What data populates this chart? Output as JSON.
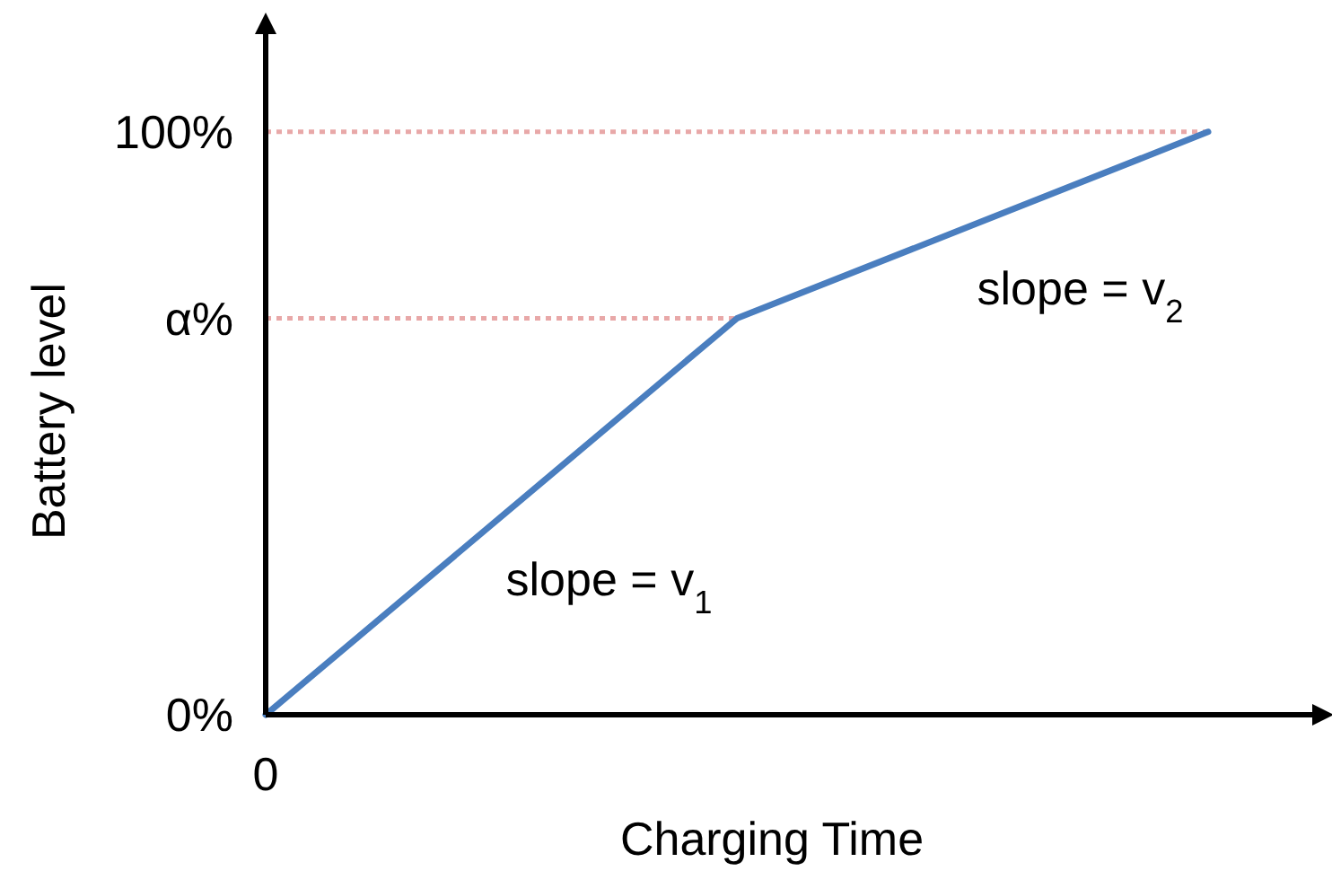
{
  "chart_data": {
    "type": "line",
    "xlabel": "Charging Time",
    "ylabel": "Battery level",
    "categories": [
      "0",
      null,
      null
    ],
    "series": [
      {
        "color": "#4a7ebf",
        "values": [
          0,
          68,
          100
        ]
      }
    ],
    "ylim": [
      0,
      118
    ],
    "yticks": [
      {
        "value": 0,
        "label": "0%"
      },
      {
        "value": 68,
        "label": "α%"
      },
      {
        "value": 100,
        "label": "100%"
      }
    ],
    "ref_lines": [
      {
        "axis": "y",
        "value": 100,
        "color": "#e8a8a8",
        "line_style": "dotted"
      },
      {
        "axis": "y",
        "value": 68,
        "color": "#e8a8a8",
        "line_style": "dotted"
      }
    ],
    "annotations": [
      "slope = v$_{1}$",
      "slope = v$_{2}$"
    ],
    "grid": false,
    "marker": "none",
    "line_style": "solid"
  }
}
